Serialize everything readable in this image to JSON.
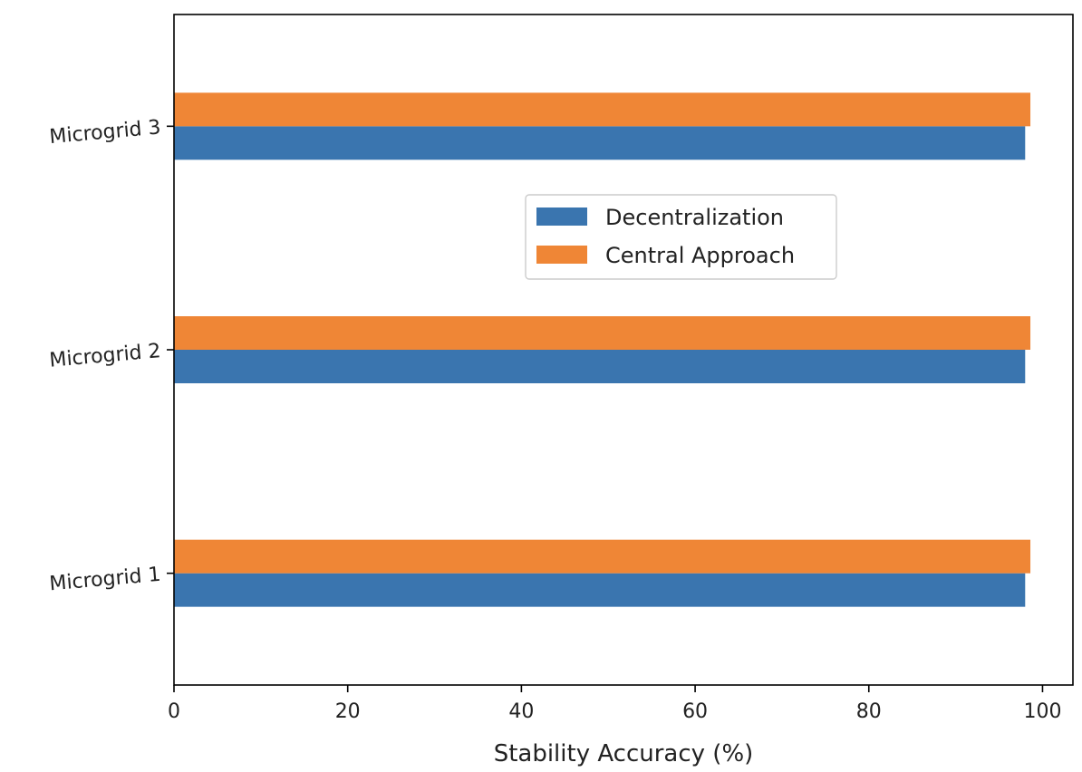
{
  "chart_data": {
    "type": "bar",
    "orientation": "horizontal",
    "categories": [
      "Microgrid 1",
      "Microgrid 2",
      "Microgrid 3"
    ],
    "series": [
      {
        "name": "Decentralization",
        "color": "#3a75af",
        "values": [
          98.0,
          98.0,
          98.0
        ]
      },
      {
        "name": "Central Approach",
        "color": "#ef8636",
        "values": [
          98.6,
          98.6,
          98.6
        ]
      }
    ],
    "xlabel": "Stability Accuracy (%)",
    "ylabel": "",
    "xlim": [
      0,
      103.5
    ],
    "xticks": [
      0,
      20,
      40,
      60,
      80,
      100
    ],
    "grid": false,
    "legend": {
      "placement": "center-right"
    }
  }
}
